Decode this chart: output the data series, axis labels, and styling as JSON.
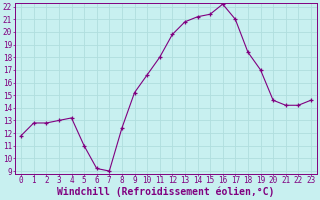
{
  "x": [
    0,
    1,
    2,
    3,
    4,
    5,
    6,
    7,
    8,
    9,
    10,
    11,
    12,
    13,
    14,
    15,
    16,
    17,
    18,
    19,
    20,
    21,
    22,
    23
  ],
  "y": [
    11.8,
    12.8,
    12.8,
    13.0,
    13.2,
    11.0,
    9.2,
    9.0,
    12.4,
    15.2,
    16.6,
    18.0,
    19.8,
    20.8,
    21.2,
    21.4,
    22.2,
    21.0,
    18.4,
    17.0,
    14.6,
    14.2,
    14.2,
    14.6
  ],
  "ylim": [
    9,
    22
  ],
  "yticks": [
    9,
    10,
    11,
    12,
    13,
    14,
    15,
    16,
    17,
    18,
    19,
    20,
    21,
    22
  ],
  "xticks": [
    0,
    1,
    2,
    3,
    4,
    5,
    6,
    7,
    8,
    9,
    10,
    11,
    12,
    13,
    14,
    15,
    16,
    17,
    18,
    19,
    20,
    21,
    22,
    23
  ],
  "xlabel": "Windchill (Refroidissement éolien,°C)",
  "line_color": "#800080",
  "marker": "+",
  "bg_color": "#c8f0f0",
  "grid_color": "#b0dede",
  "tick_fontsize": 5.5,
  "xlabel_fontsize": 7.0
}
